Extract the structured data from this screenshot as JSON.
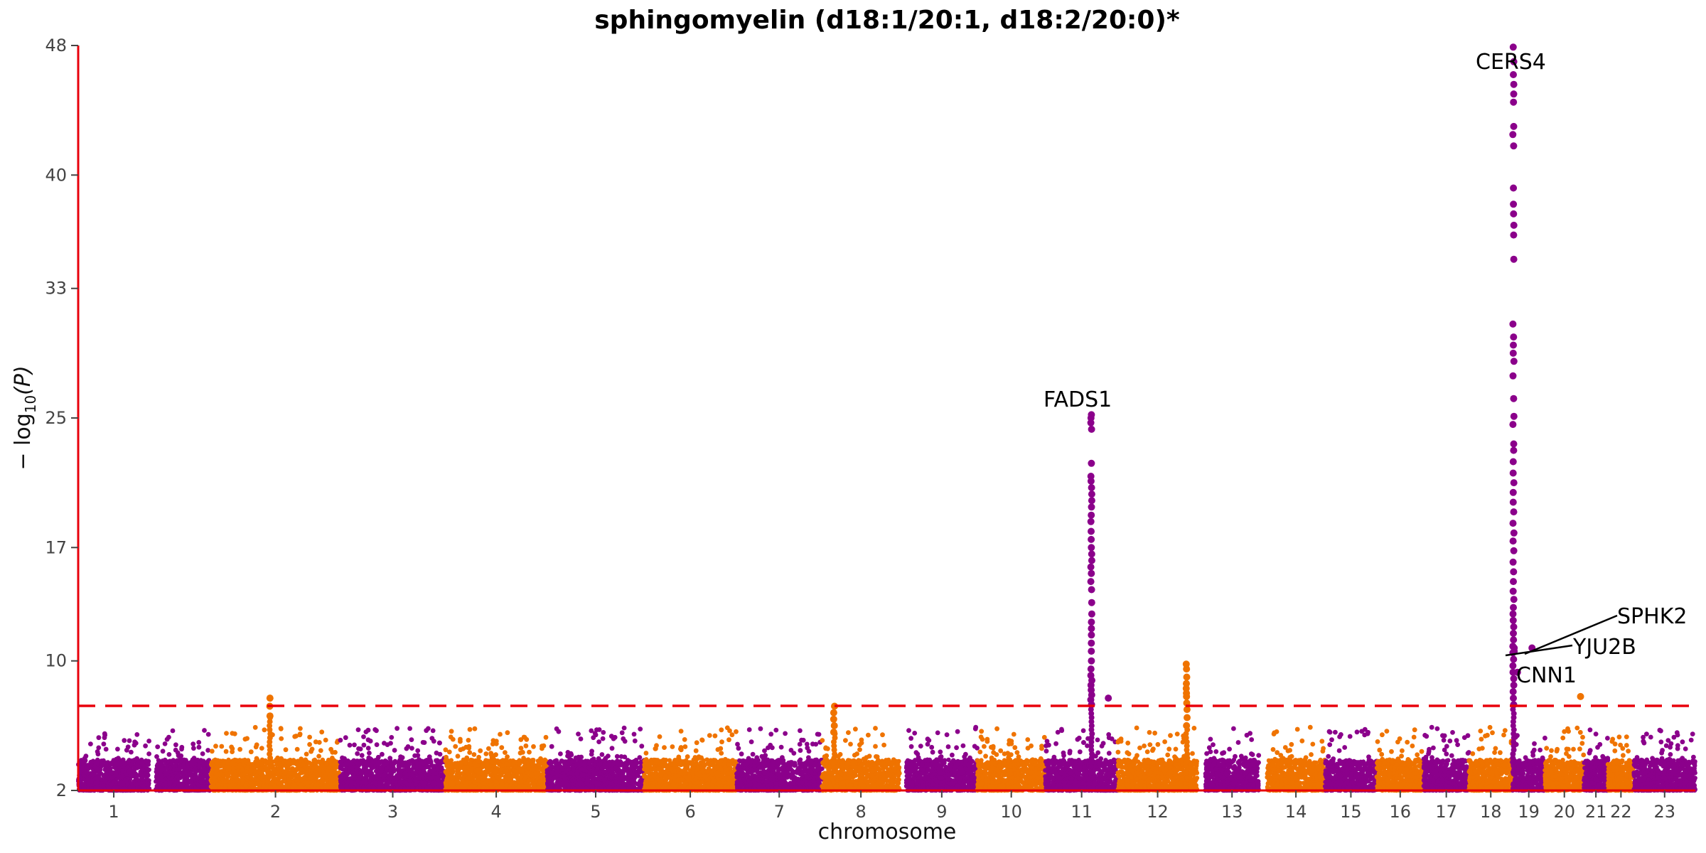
{
  "chart_data": {
    "type": "scatter",
    "subtype": "manhattan",
    "title": "sphingomyelin (d18:1/20:1, d18:2/20:0)*",
    "xlabel": "chromosome",
    "ylabel_parts": {
      "prefix": "− log",
      "sub": "10",
      "suffix": "(P)"
    },
    "yticks": [
      2,
      10,
      17,
      25,
      33,
      40,
      48
    ],
    "ylim": [
      2,
      48
    ],
    "significance_line": 7.3,
    "colors": {
      "odd": "#8b008b",
      "even": "#ef7300",
      "axis": "#e8000b",
      "threshold": "#e8000b"
    },
    "chromosomes": [
      {
        "label": "1",
        "start": 0.0,
        "end": 0.044,
        "color": "odd"
      },
      {
        "label": "",
        "start": 0.048,
        "end": 0.082,
        "color": "odd"
      },
      {
        "label": "2",
        "start": 0.082,
        "end": 0.162,
        "color": "even"
      },
      {
        "label": "3",
        "start": 0.162,
        "end": 0.227,
        "color": "odd"
      },
      {
        "label": "4",
        "start": 0.227,
        "end": 0.29,
        "color": "even"
      },
      {
        "label": "5",
        "start": 0.29,
        "end": 0.35,
        "color": "odd"
      },
      {
        "label": "6",
        "start": 0.35,
        "end": 0.407,
        "color": "even"
      },
      {
        "label": "7",
        "start": 0.407,
        "end": 0.46,
        "color": "odd"
      },
      {
        "label": "8",
        "start": 0.46,
        "end": 0.508,
        "color": "even"
      },
      {
        "label": "9",
        "start": 0.512,
        "end": 0.556,
        "color": "odd"
      },
      {
        "label": "10",
        "start": 0.556,
        "end": 0.598,
        "color": "even"
      },
      {
        "label": "11",
        "start": 0.598,
        "end": 0.643,
        "color": "odd"
      },
      {
        "label": "12",
        "start": 0.643,
        "end": 0.692,
        "color": "even"
      },
      {
        "label": "13",
        "start": 0.697,
        "end": 0.73,
        "color": "odd"
      },
      {
        "label": "14",
        "start": 0.735,
        "end": 0.771,
        "color": "even"
      },
      {
        "label": "15",
        "start": 0.771,
        "end": 0.803,
        "color": "odd"
      },
      {
        "label": "16",
        "start": 0.803,
        "end": 0.832,
        "color": "even"
      },
      {
        "label": "17",
        "start": 0.832,
        "end": 0.86,
        "color": "odd"
      },
      {
        "label": "18",
        "start": 0.86,
        "end": 0.887,
        "color": "even"
      },
      {
        "label": "19",
        "start": 0.887,
        "end": 0.907,
        "color": "odd"
      },
      {
        "label": "20",
        "start": 0.907,
        "end": 0.931,
        "color": "even"
      },
      {
        "label": "21",
        "start": 0.931,
        "end": 0.946,
        "color": "odd"
      },
      {
        "label": "22",
        "start": 0.946,
        "end": 0.962,
        "color": "even"
      },
      {
        "label": "23",
        "start": 0.962,
        "end": 1.0,
        "color": "odd"
      }
    ],
    "peaks": [
      {
        "chrom": "11",
        "label": "FADS1",
        "max": 25.2,
        "values": [
          7.3,
          7.6,
          7.9,
          8.2,
          8.5,
          8.8,
          9.1,
          9.5,
          10.0,
          10.6,
          11.1,
          11.6,
          12.0,
          12.4,
          12.9,
          13.6,
          14.4,
          14.9,
          15.4,
          15.8,
          16.2,
          16.6,
          17.0,
          17.5,
          18.0,
          18.6,
          19.0,
          19.5,
          19.9,
          20.3,
          20.7,
          21.1,
          21.4,
          22.2,
          24.3,
          24.7,
          25.0,
          25.2
        ]
      },
      {
        "chrom": "12",
        "label": "",
        "max": 9.8,
        "values": [
          6.0,
          6.5,
          7.0,
          7.4,
          7.8,
          8.0,
          8.3,
          8.6,
          9.0,
          9.5,
          9.8
        ]
      },
      {
        "chrom": "19",
        "label": "CERS4",
        "max": 47.9,
        "values": [
          7.3,
          7.7,
          8.1,
          8.5,
          8.9,
          9.3,
          9.7,
          10.1,
          10.5,
          10.9,
          11.3,
          11.7,
          12.1,
          12.5,
          12.9,
          13.3,
          13.8,
          14.3,
          14.9,
          15.5,
          16.1,
          16.8,
          17.4,
          17.9,
          18.5,
          19.2,
          19.8,
          20.4,
          21.0,
          21.6,
          22.3,
          23.0,
          23.4,
          24.6,
          25.1,
          26.2,
          27.6,
          28.5,
          29.0,
          29.5,
          30.0,
          30.8,
          34.8,
          36.3,
          36.9,
          37.6,
          38.2,
          39.2,
          41.8,
          42.5,
          43.0,
          44.5,
          45.0,
          45.6,
          46.2,
          47.0,
          47.9
        ]
      },
      {
        "chrom": "2",
        "label": "",
        "max": 7.7,
        "values": [
          6.6,
          7.2,
          7.7
        ]
      },
      {
        "chrom": "8",
        "label": "",
        "max": 7.2,
        "values": [
          5.6,
          6.0,
          6.4,
          6.8,
          7.2
        ]
      }
    ],
    "point_annotations": [
      {
        "label": "SPHK2",
        "x": 0.888,
        "y": 10.6
      },
      {
        "label": "YJU2B",
        "x": 0.888,
        "y": 10.8
      },
      {
        "label": "CNN1",
        "x": 0.89,
        "y": 9.3
      }
    ],
    "isolated_points": [
      {
        "x": 0.637,
        "y": 7.7
      },
      {
        "x": 0.929,
        "y": 7.8
      },
      {
        "x": 0.899,
        "y": 10.8
      }
    ],
    "annotations": [
      {
        "text": "FADS1"
      },
      {
        "text": "CERS4"
      },
      {
        "text": "SPHK2"
      },
      {
        "text": "YJU2B"
      },
      {
        "text": "CNN1"
      }
    ]
  }
}
